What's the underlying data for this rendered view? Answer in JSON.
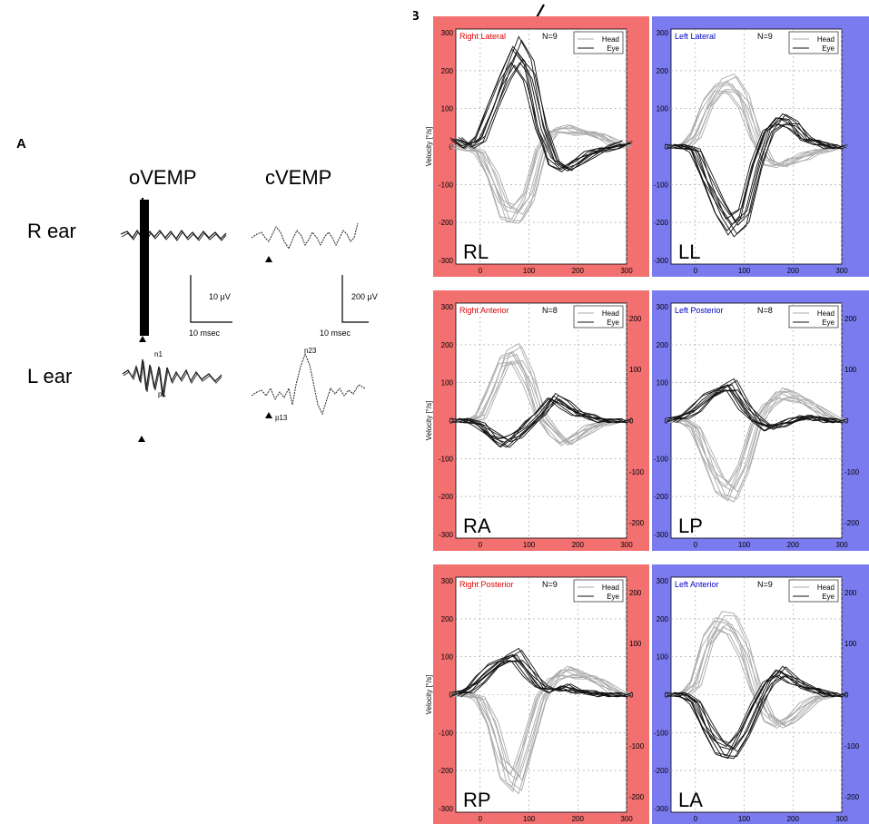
{
  "panel_a": {
    "label": "A",
    "col_headers": [
      "oVEMP",
      "cVEMP"
    ],
    "row_labels": [
      "R ear",
      "L ear"
    ],
    "scale_bars": [
      {
        "amplitude": "10 μV",
        "time": "10 msec"
      },
      {
        "amplitude": "200 μV",
        "time": "10 msec"
      }
    ],
    "peak_labels": {
      "ovemp": [
        "n1",
        "p1"
      ],
      "cvemp": [
        "n23",
        "p13"
      ]
    }
  },
  "panel_b": {
    "label": "B",
    "arrow": true
  },
  "colors": {
    "right_bg": "#f27070",
    "left_bg": "#7b7bf0",
    "right_text": "#e00000",
    "left_text": "#0000cc",
    "head_line": "#aaaaaa",
    "eye_line": "#111111"
  },
  "chart_data": [
    {
      "type": "line",
      "code": "RL",
      "title": "Right Lateral",
      "n": "N=9",
      "side": "right",
      "ylabel": "Velocity [°/s]",
      "legend": [
        "Head",
        "Eye"
      ],
      "xlim": [
        -50,
        300
      ],
      "ylim": [
        -310,
        310
      ],
      "grid": true,
      "x_ticks": [
        0,
        100,
        200,
        300
      ],
      "y_ticks": [
        300,
        200,
        100,
        0,
        -100,
        -200,
        -300
      ],
      "right_ticks": [],
      "x": [
        -50,
        -25,
        0,
        25,
        50,
        75,
        100,
        125,
        150,
        175,
        200,
        225,
        250,
        275,
        300
      ],
      "series": [
        {
          "name": "Head",
          "values": [
            0,
            -5,
            -15,
            -80,
            -170,
            -180,
            -130,
            -10,
            40,
            45,
            40,
            35,
            25,
            10,
            0
          ]
        },
        {
          "name": "Eye",
          "values": [
            20,
            0,
            20,
            100,
            180,
            245,
            200,
            50,
            -40,
            -60,
            -40,
            -20,
            -10,
            0,
            10
          ]
        }
      ]
    },
    {
      "type": "line",
      "code": "LL",
      "title": "Left Lateral",
      "n": "N=9",
      "side": "left",
      "ylabel": "",
      "legend": [
        "Head",
        "Eye"
      ],
      "xlim": [
        -50,
        300
      ],
      "ylim": [
        -310,
        310
      ],
      "grid": true,
      "x_ticks": [
        0,
        100,
        200,
        300
      ],
      "y_ticks": [
        300,
        200,
        100,
        0,
        -100,
        -200,
        -300
      ],
      "right_ticks": [],
      "x": [
        -50,
        -25,
        0,
        25,
        50,
        75,
        100,
        125,
        150,
        175,
        200,
        225,
        250,
        275,
        300
      ],
      "series": [
        {
          "name": "Head",
          "values": [
            0,
            0,
            30,
            110,
            155,
            160,
            120,
            20,
            -40,
            -50,
            -35,
            -25,
            -15,
            -5,
            0
          ]
        },
        {
          "name": "Eye",
          "values": [
            0,
            0,
            -10,
            -90,
            -160,
            -210,
            -180,
            -50,
            40,
            70,
            60,
            20,
            10,
            0,
            0
          ]
        }
      ]
    },
    {
      "type": "line",
      "code": "RA",
      "title": "Right Anterior",
      "n": "N=8",
      "side": "right",
      "ylabel": "Velocity [°/s]",
      "legend": [
        "Head",
        "Eye"
      ],
      "xlim": [
        -50,
        300
      ],
      "ylim": [
        -310,
        310
      ],
      "grid": true,
      "x_ticks": [
        0,
        100,
        200,
        300
      ],
      "y_ticks": [
        300,
        200,
        100,
        0,
        -100,
        -200,
        -300
      ],
      "right_ticks": [
        200,
        100,
        0,
        -100,
        -200
      ],
      "x": [
        -50,
        -25,
        0,
        25,
        50,
        75,
        100,
        125,
        150,
        175,
        200,
        225,
        250,
        275,
        300
      ],
      "series": [
        {
          "name": "Head",
          "values": [
            0,
            0,
            10,
            80,
            160,
            170,
            110,
            10,
            -30,
            -60,
            -40,
            -20,
            -10,
            0,
            0
          ]
        },
        {
          "name": "Eye",
          "values": [
            0,
            0,
            -10,
            -40,
            -60,
            -40,
            -10,
            20,
            60,
            40,
            20,
            10,
            0,
            0,
            0
          ]
        }
      ]
    },
    {
      "type": "line",
      "code": "LP",
      "title": "Left Posterior",
      "n": "N=8",
      "side": "left",
      "ylabel": "",
      "legend": [
        "Head",
        "Eye"
      ],
      "xlim": [
        -50,
        300
      ],
      "ylim": [
        -310,
        310
      ],
      "grid": true,
      "x_ticks": [
        0,
        100,
        200,
        300
      ],
      "y_ticks": [
        300,
        200,
        100,
        0,
        -100,
        -200,
        -300
      ],
      "right_ticks": [
        200,
        100,
        0,
        -100,
        -200
      ],
      "x": [
        -50,
        -25,
        0,
        25,
        50,
        75,
        100,
        125,
        150,
        175,
        200,
        225,
        250,
        275,
        300
      ],
      "series": [
        {
          "name": "Head",
          "values": [
            0,
            0,
            -20,
            -100,
            -170,
            -190,
            -120,
            -10,
            40,
            70,
            65,
            50,
            30,
            10,
            0
          ]
        },
        {
          "name": "Eye",
          "values": [
            0,
            10,
            30,
            60,
            80,
            90,
            40,
            0,
            -20,
            -10,
            0,
            10,
            5,
            0,
            0
          ]
        }
      ]
    },
    {
      "type": "line",
      "code": "RP",
      "title": "Right Posterior",
      "n": "N=9",
      "side": "right",
      "ylabel": "Velocity [°/s]",
      "legend": [
        "Head",
        "Eye"
      ],
      "xlim": [
        -50,
        300
      ],
      "ylim": [
        -310,
        310
      ],
      "grid": true,
      "x_ticks": [
        0,
        100,
        200,
        300
      ],
      "y_ticks": [
        300,
        200,
        100,
        0,
        -100,
        -200,
        -300
      ],
      "right_ticks": [
        200,
        100,
        0,
        -100,
        -200
      ],
      "x": [
        -50,
        -25,
        0,
        25,
        50,
        75,
        100,
        125,
        150,
        175,
        200,
        225,
        250,
        275,
        300
      ],
      "series": [
        {
          "name": "Head",
          "values": [
            0,
            0,
            -10,
            -80,
            -200,
            -230,
            -120,
            -10,
            40,
            60,
            55,
            45,
            30,
            10,
            0
          ]
        },
        {
          "name": "Eye",
          "values": [
            0,
            10,
            40,
            70,
            90,
            100,
            60,
            20,
            10,
            20,
            10,
            5,
            0,
            0,
            0
          ]
        }
      ]
    },
    {
      "type": "line",
      "code": "LA",
      "title": "Left Anterior",
      "n": "N=9",
      "side": "left",
      "ylabel": "",
      "legend": [
        "Head",
        "Eye"
      ],
      "xlim": [
        -50,
        300
      ],
      "ylim": [
        -310,
        310
      ],
      "grid": true,
      "x_ticks": [
        0,
        100,
        200,
        300
      ],
      "y_ticks": [
        300,
        200,
        100,
        0,
        -100,
        -200,
        -300
      ],
      "right_ticks": [
        200,
        100,
        0,
        -100,
        -200
      ],
      "x": [
        -50,
        -25,
        0,
        25,
        50,
        75,
        100,
        125,
        150,
        175,
        200,
        225,
        250,
        275,
        300
      ],
      "series": [
        {
          "name": "Head",
          "values": [
            0,
            0,
            30,
            140,
            190,
            180,
            120,
            10,
            -60,
            -80,
            -60,
            -30,
            -10,
            0,
            0
          ]
        },
        {
          "name": "Eye",
          "values": [
            0,
            0,
            -20,
            -90,
            -140,
            -150,
            -100,
            -30,
            30,
            60,
            40,
            20,
            10,
            0,
            0
          ]
        }
      ]
    }
  ]
}
